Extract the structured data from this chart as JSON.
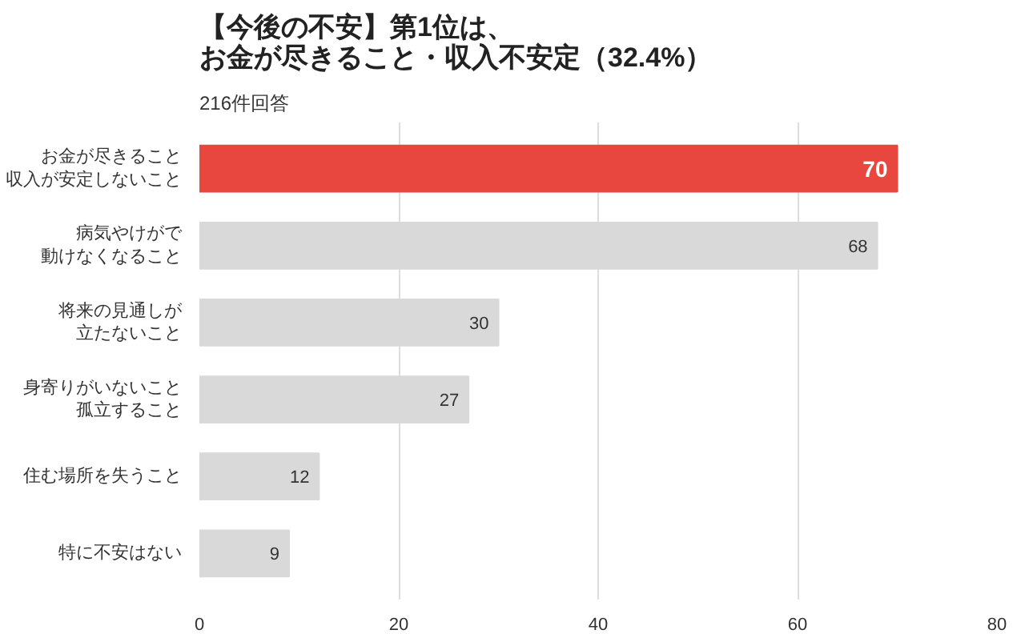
{
  "chart_data": {
    "type": "bar",
    "orientation": "horizontal",
    "title": "【今後の不安】第1位は、お金が尽きること・収入不安定（32.4%）",
    "subtitle": "216件回答",
    "categories": [
      "お金が尽きること収入が安定しないこと",
      "病気やけがで動けなくなること",
      "将来の見通しが立たないこと",
      "身寄りがいないこと孤立すること",
      "住む場所を失うこと",
      "特に不安はない"
    ],
    "values": [
      70,
      68,
      30,
      27,
      12,
      9
    ],
    "colors": [
      "#e8473f",
      "#d9d9d9",
      "#d9d9d9",
      "#d9d9d9",
      "#d9d9d9",
      "#d9d9d9"
    ],
    "xlim": [
      0,
      80
    ],
    "xticks": [
      0,
      20,
      40,
      60,
      80
    ],
    "grid": "x",
    "data_labels": true
  }
}
